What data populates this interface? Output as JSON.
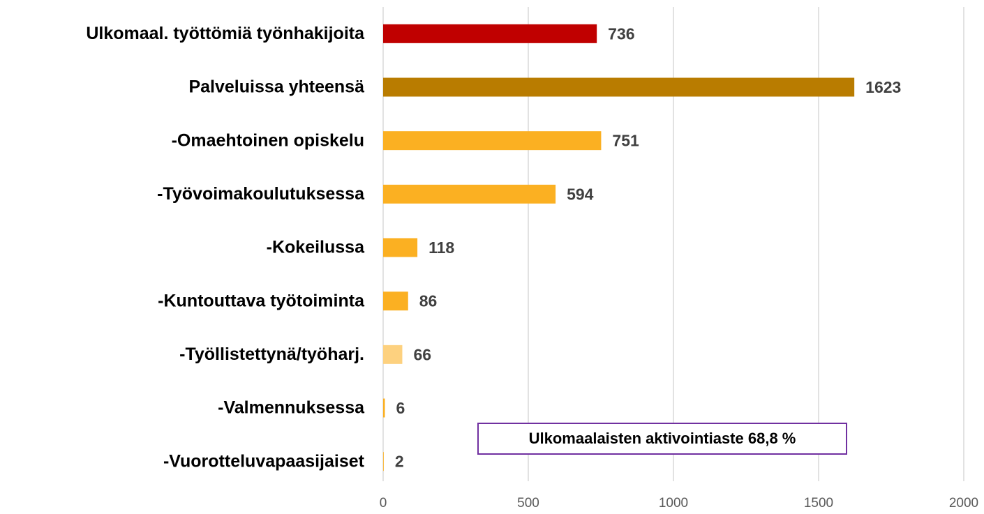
{
  "chart_data": {
    "type": "bar",
    "orientation": "horizontal",
    "categories": [
      "Ulkomaal. työttömiä työnhakijoita",
      "Palveluissa yhteensä",
      "-Omaehtoinen opiskelu",
      "-Työvoimakoulutuksessa",
      "-Kokeilussa",
      "-Kuntouttava työtoiminta",
      "-Työllistettynä/työharj.",
      "-Valmennuksessa",
      "-Vuorotteluvapaasijaiset"
    ],
    "values": [
      736,
      1623,
      751,
      594,
      118,
      86,
      66,
      6,
      2
    ],
    "colors": [
      "#c00000",
      "#b97c00",
      "#fbb022",
      "#fbb022",
      "#fbb022",
      "#fbb022",
      "#fdd17f",
      "#fbb022",
      "#fbb022"
    ],
    "xlim": [
      0,
      2000
    ],
    "xticks": [
      0,
      500,
      1000,
      1500,
      2000
    ],
    "grid": true,
    "annotation": "Ulkomaalaisten aktivointiaste 68,8 %"
  }
}
